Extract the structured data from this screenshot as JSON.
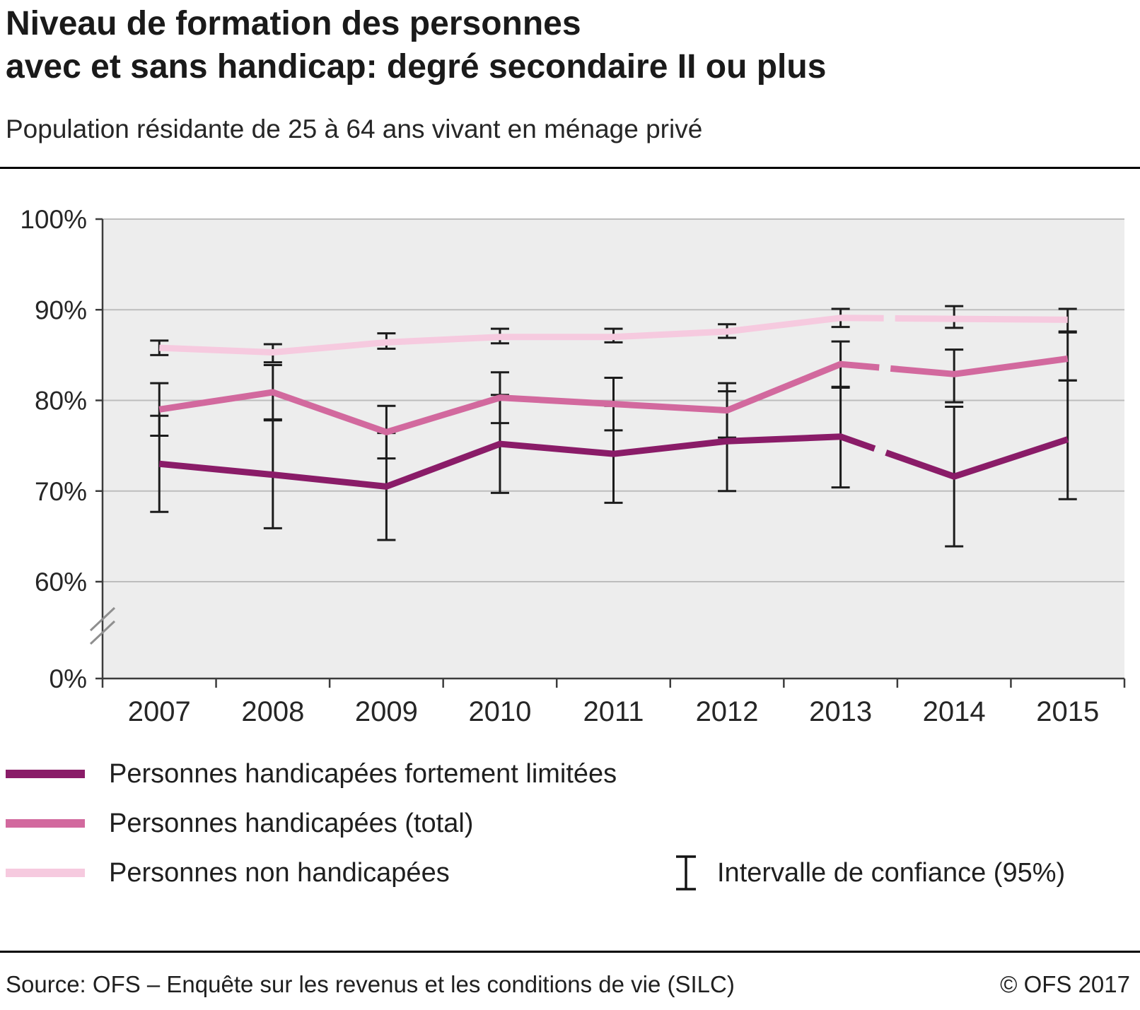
{
  "chart_data": {
    "type": "line",
    "title_lines": [
      "Niveau de formation des personnes",
      "avec et sans handicap: degré secondaire II ou plus"
    ],
    "subtitle": "Population résidante de 25 à 64 ans vivant en ménage privé",
    "x": [
      "2007",
      "2008",
      "2009",
      "2010",
      "2011",
      "2012",
      "2013",
      "2014",
      "2015"
    ],
    "y_ticks": [
      0,
      60,
      70,
      80,
      90,
      100
    ],
    "ylim": [
      0,
      100
    ],
    "y_axis_break_between": [
      0,
      60
    ],
    "series_break_between": [
      "2013",
      "2014"
    ],
    "grid": true,
    "plot_bg": "#ededed",
    "grid_color": "#bdbdbd",
    "axis_color": "#3c3c3c",
    "error_bar_color": "#1c1c1c",
    "series": [
      {
        "name": "Personnes handicapées fortement limitées",
        "color": "#8a1c68",
        "values": [
          73.0,
          71.8,
          70.5,
          75.2,
          74.1,
          75.5,
          76.0,
          71.6,
          75.7
        ],
        "ci_low": [
          67.7,
          65.9,
          64.6,
          69.8,
          68.7,
          70.0,
          70.4,
          63.9,
          69.1
        ],
        "ci_high": [
          78.3,
          77.8,
          76.4,
          80.6,
          79.4,
          81.0,
          81.5,
          79.3,
          82.2
        ]
      },
      {
        "name": "Personnes handicapées (total)",
        "color": "#d2699e",
        "values": [
          79.0,
          80.9,
          76.5,
          80.3,
          79.6,
          78.9,
          84.0,
          82.9,
          84.6
        ],
        "ci_low": [
          76.1,
          77.9,
          73.6,
          77.5,
          76.7,
          75.9,
          81.4,
          79.8,
          82.2
        ],
        "ci_high": [
          81.9,
          83.9,
          79.4,
          83.1,
          82.5,
          81.9,
          86.5,
          85.6,
          87.5
        ]
      },
      {
        "name": "Personnes non handicapées",
        "color": "#f6cadf",
        "values": [
          85.8,
          85.3,
          86.4,
          87.0,
          87.0,
          87.6,
          89.1,
          89.0,
          88.9
        ],
        "ci_low": [
          85.0,
          84.2,
          85.7,
          86.3,
          86.4,
          86.9,
          88.1,
          88.0,
          87.6
        ],
        "ci_high": [
          86.6,
          86.2,
          87.4,
          87.9,
          87.9,
          88.4,
          90.1,
          90.4,
          90.1
        ]
      }
    ],
    "legend": {
      "ci_label": "Intervalle de confiance (95%)"
    }
  },
  "footer": {
    "source": "Source: OFS – Enquête sur les revenus et les conditions de vie (SILC)",
    "copyright": "© OFS 2017"
  }
}
